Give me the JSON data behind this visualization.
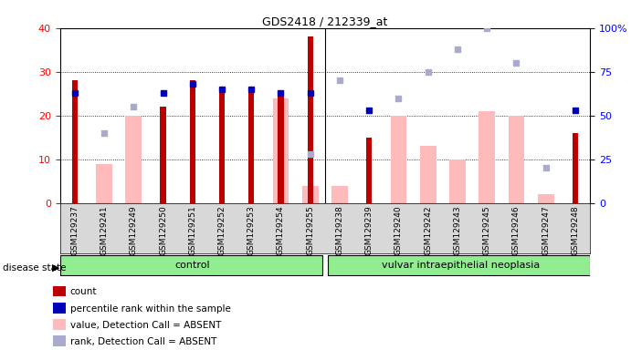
{
  "title": "GDS2418 / 212339_at",
  "samples": [
    "GSM129237",
    "GSM129241",
    "GSM129249",
    "GSM129250",
    "GSM129251",
    "GSM129252",
    "GSM129253",
    "GSM129254",
    "GSM129255",
    "GSM129238",
    "GSM129239",
    "GSM129240",
    "GSM129242",
    "GSM129243",
    "GSM129245",
    "GSM129246",
    "GSM129247",
    "GSM129248"
  ],
  "count_red": [
    28,
    0,
    0,
    22,
    28,
    26,
    26,
    25,
    38,
    0,
    15,
    0,
    0,
    0,
    0,
    0,
    0,
    16
  ],
  "rank_blue_left": [
    25,
    0,
    0,
    25,
    27,
    26,
    26,
    25,
    25,
    0,
    21,
    0,
    0,
    0,
    0,
    0,
    0,
    21
  ],
  "value_pink": [
    0,
    9,
    20,
    0,
    0,
    0,
    0,
    24,
    4,
    4,
    0,
    20,
    13,
    10,
    21,
    20,
    2,
    0
  ],
  "rank_lightblue_right": [
    0,
    40,
    55,
    0,
    0,
    0,
    0,
    0,
    28,
    70,
    0,
    60,
    75,
    88,
    100,
    80,
    20,
    0
  ],
  "rank_blue_right": [
    63,
    0,
    0,
    63,
    68,
    65,
    65,
    63,
    63,
    0,
    53,
    0,
    0,
    0,
    0,
    0,
    0,
    53
  ],
  "group_labels": [
    "control",
    "vulvar intraepithelial neoplasia"
  ],
  "group_sizes": [
    9,
    9
  ],
  "ylim_left": [
    0,
    40
  ],
  "ylim_right": [
    0,
    100
  ],
  "yticks_left": [
    0,
    10,
    20,
    30,
    40
  ],
  "yticks_right": [
    0,
    25,
    50,
    75,
    100
  ],
  "color_red": "#BB0000",
  "color_blue": "#0000BB",
  "color_pink": "#FFBBBB",
  "color_lightblue": "#AAAACC",
  "bg_groups": "#90EE90",
  "legend_items": [
    "count",
    "percentile rank within the sample",
    "value, Detection Call = ABSENT",
    "rank, Detection Call = ABSENT"
  ]
}
